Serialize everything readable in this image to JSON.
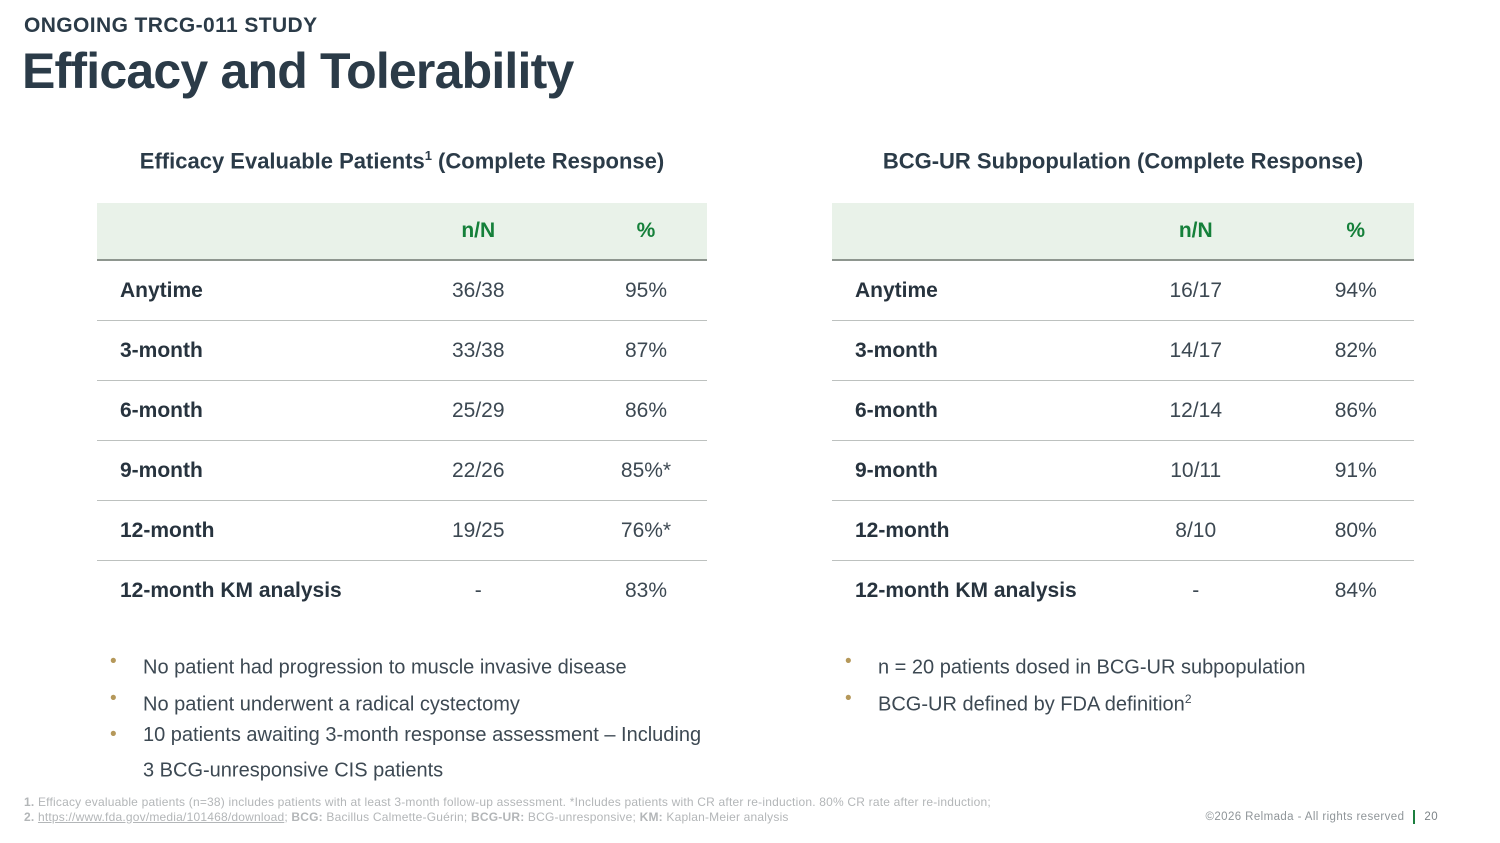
{
  "header": {
    "kicker": "ONGOING TRCG-011 STUDY",
    "title": "Efficacy and Tolerability"
  },
  "colors": {
    "heading_dark": "#2b3b48",
    "accent_green": "#15803a",
    "table_header_bg": "#e9f2e9",
    "bullet_gold": "#b5985a",
    "page_separator_green": "#1c7f3f"
  },
  "left_panel": {
    "title_pre": "Efficacy Evaluable Patients",
    "title_sup": "1",
    "title_post": " (Complete Response)",
    "columns": {
      "n_N": "n/N",
      "pct": "%"
    },
    "rows": [
      {
        "label": "Anytime",
        "n_N": "36/38",
        "pct": "95%"
      },
      {
        "label": "3-month",
        "n_N": "33/38",
        "pct": "87%"
      },
      {
        "label": "6-month",
        "n_N": "25/29",
        "pct": "86%"
      },
      {
        "label": "9-month",
        "n_N": "22/26",
        "pct": "85%*"
      },
      {
        "label": "12-month",
        "n_N": "19/25",
        "pct": "76%*"
      },
      {
        "label": "12-month KM analysis",
        "n_N": "-",
        "pct": "83%"
      }
    ],
    "bullets": [
      {
        "text": "No patient had progression to muscle invasive disease",
        "sup": ""
      },
      {
        "text": "No patient underwent a radical cystectomy",
        "sup": ""
      },
      {
        "text": "10 patients awaiting 3-month response assessment – Including\n3 BCG-unresponsive CIS patients",
        "sup": ""
      }
    ]
  },
  "right_panel": {
    "title_pre": "BCG-UR Subpopulation (Complete Response)",
    "title_sup": "",
    "title_post": "",
    "columns": {
      "n_N": "n/N",
      "pct": "%"
    },
    "rows": [
      {
        "label": "Anytime",
        "n_N": "16/17",
        "pct": "94%"
      },
      {
        "label": "3-month",
        "n_N": "14/17",
        "pct": "82%"
      },
      {
        "label": "6-month",
        "n_N": "12/14",
        "pct": "86%"
      },
      {
        "label": "9-month",
        "n_N": "10/11",
        "pct": "91%"
      },
      {
        "label": "12-month",
        "n_N": "8/10",
        "pct": "80%"
      },
      {
        "label": "12-month KM analysis",
        "n_N": "-",
        "pct": "84%"
      }
    ],
    "bullets": [
      {
        "text": "n = 20 patients dosed in BCG-UR subpopulation",
        "sup": ""
      },
      {
        "text": "BCG-UR defined by FDA definition",
        "sup": "2"
      }
    ]
  },
  "footnotes": {
    "line1": {
      "marker": "1.",
      "text": " Efficacy evaluable patients (n=38) includes patients with at least 3-month follow-up assessment. *Includes patients with CR after re-induction. 80% CR rate after re-induction;"
    },
    "line2": {
      "marker": "2.",
      "link": "https://www.fda.gov/media/101468/download",
      "sep1": "; ",
      "abbr1_label": "BCG:",
      "abbr1_text": " Bacillus Calmette-Guérin; ",
      "abbr2_label": "BCG-UR:",
      "abbr2_text": " BCG-unresponsive; ",
      "abbr3_label": "KM:",
      "abbr3_text": " Kaplan-Meier analysis"
    }
  },
  "footer": {
    "copyright": "©2026 Relmada - All rights reserved",
    "page": "20"
  }
}
